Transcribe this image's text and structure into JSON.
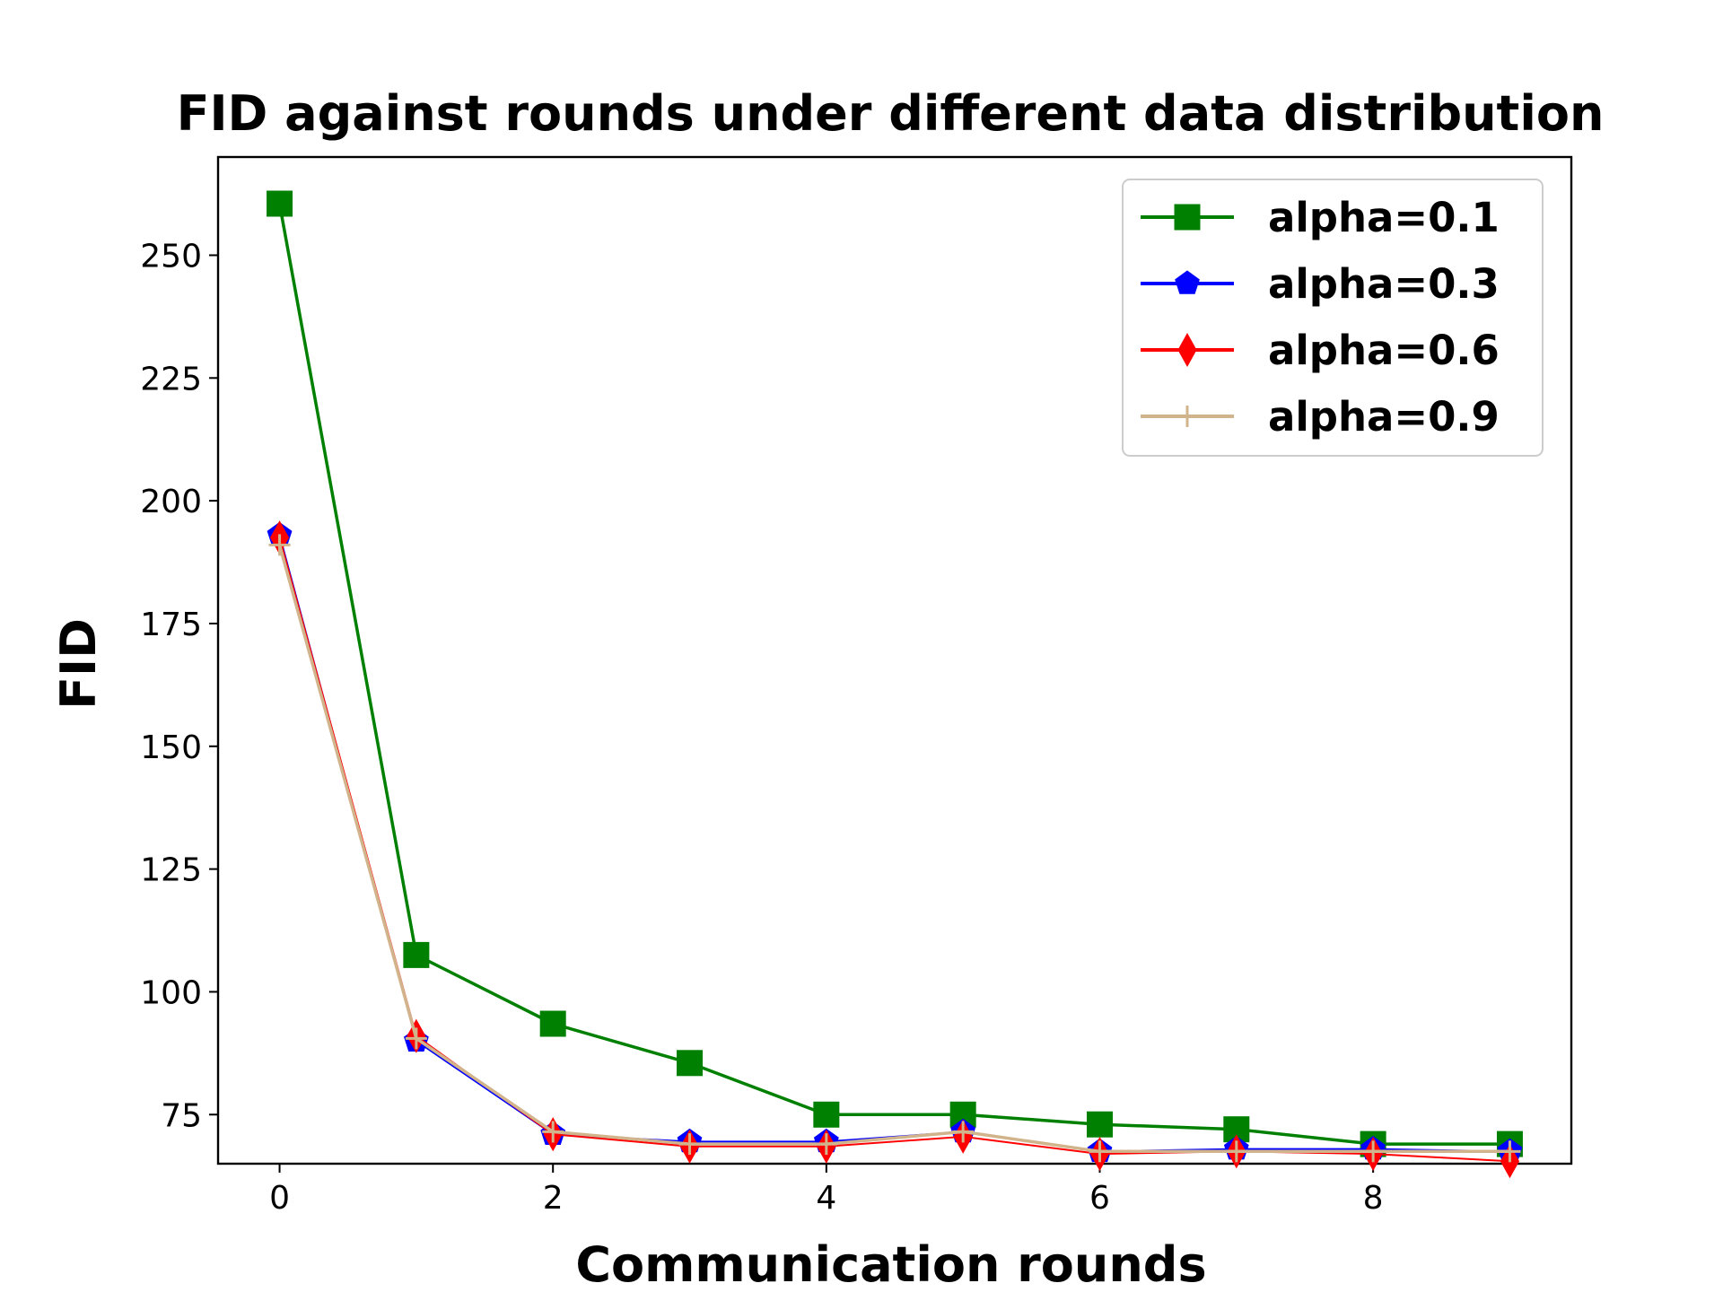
{
  "chart_data": {
    "type": "line",
    "title": "FID against rounds under different data distribution",
    "xlabel": "Communication rounds",
    "ylabel": "FID",
    "xlim": [
      -0.45,
      9.45
    ],
    "ylim": [
      65,
      270
    ],
    "xticks": [
      0,
      2,
      4,
      6,
      8
    ],
    "yticks": [
      75,
      100,
      125,
      150,
      175,
      200,
      225,
      250
    ],
    "grid": false,
    "legend_position": "top-right",
    "x": [
      0,
      1,
      2,
      3,
      4,
      5,
      6,
      7,
      8,
      9
    ],
    "series": [
      {
        "name": "alpha=0.1",
        "color": "#008000",
        "marker": "square",
        "values": [
          260.5,
          107.5,
          93.5,
          85.5,
          75.0,
          75.0,
          73.0,
          72.0,
          69.0,
          69.0
        ]
      },
      {
        "name": "alpha=0.3",
        "color": "#0000ff",
        "marker": "pentagon",
        "values": [
          193.0,
          90.0,
          71.0,
          69.5,
          69.5,
          71.5,
          67.5,
          68.0,
          68.0,
          67.5
        ]
      },
      {
        "name": "alpha=0.6",
        "color": "#ff0000",
        "marker": "diamond",
        "values": [
          192.5,
          91.0,
          71.0,
          68.5,
          68.5,
          70.5,
          67.0,
          67.5,
          67.0,
          65.5
        ]
      },
      {
        "name": "alpha=0.9",
        "color": "#d2b48c",
        "marker": "plus",
        "values": [
          191.0,
          90.5,
          71.5,
          69.0,
          69.0,
          71.5,
          67.5,
          67.5,
          67.5,
          67.5
        ]
      }
    ]
  }
}
